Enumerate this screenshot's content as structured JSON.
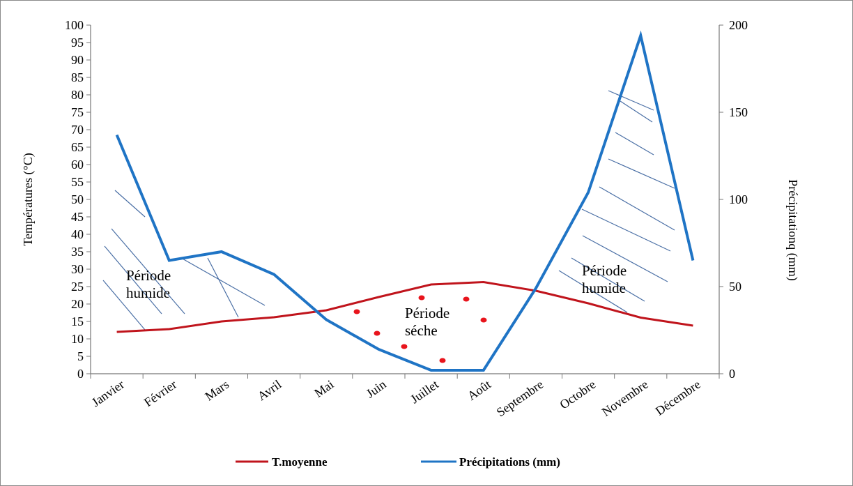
{
  "chart_data": {
    "type": "line",
    "title": "",
    "categories": [
      "Janvier",
      "Février",
      "Mars",
      "Avril",
      "Mai",
      "Juin",
      "Juillet",
      "Août",
      "Septembre",
      "Octobre",
      "Novembre",
      "Décembre"
    ],
    "y_left": {
      "label": "Températures (°C)",
      "min": 0,
      "max": 100,
      "step": 5
    },
    "y_right": {
      "label": "Précipitationq (mm)",
      "min": 0,
      "max": 200,
      "step": 50
    },
    "series": [
      {
        "name": "T.moyenne",
        "axis": "left",
        "color": "#c0141c",
        "values": [
          12,
          12.8,
          15,
          16.2,
          18.2,
          22,
          25.6,
          26.3,
          23.8,
          20.2,
          16.1,
          13.8
        ]
      },
      {
        "name": "Précipitations (mm)",
        "axis": "right",
        "color": "#1f74c5",
        "values": [
          137,
          65,
          70,
          57,
          31,
          14,
          2,
          2,
          49,
          104,
          194,
          65
        ]
      }
    ],
    "annotations": [
      {
        "text": [
          "Période",
          "humide"
        ],
        "style": "hatched",
        "color": "#4a6fa5"
      },
      {
        "text": [
          "Période",
          "séche"
        ],
        "style": "dotted",
        "color": "#e8141c"
      },
      {
        "text": [
          "Période",
          "humide"
        ],
        "style": "hatched",
        "color": "#4a6fa5"
      }
    ],
    "legend_position": "bottom",
    "grid": false
  }
}
